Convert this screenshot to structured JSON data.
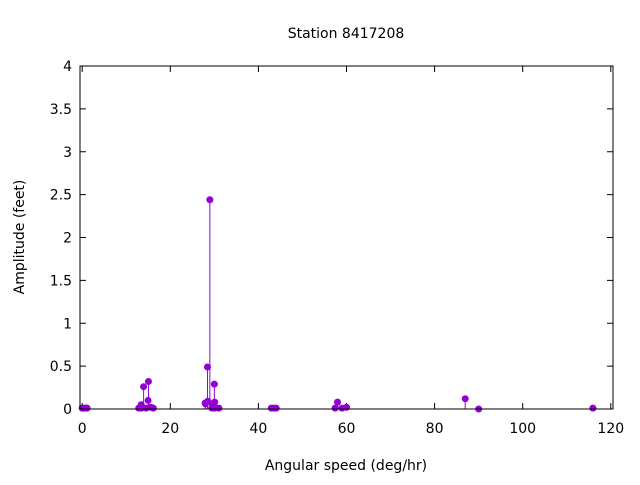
{
  "chart_data": {
    "type": "scatter",
    "style": "impulses-with-points",
    "title": "Station 8417208",
    "xlabel": "Angular speed (deg/hr)",
    "ylabel": "Amplitude (feet)",
    "xlim": [
      -0.5,
      120.5
    ],
    "ylim": [
      0,
      4
    ],
    "xticks": [
      "0",
      "20",
      "40",
      "60",
      "80",
      "100",
      "120"
    ],
    "yticks": [
      "0",
      "0.5",
      "1",
      "1.5",
      "2",
      "2.5",
      "3",
      "3.5",
      "4"
    ],
    "grid": false,
    "color": "#9400d3",
    "points": [
      {
        "x": 0.0,
        "y": 0.01
      },
      {
        "x": 0.04,
        "y": 0.01
      },
      {
        "x": 0.08,
        "y": 0.01
      },
      {
        "x": 0.54,
        "y": 0.01
      },
      {
        "x": 1.02,
        "y": 0.01
      },
      {
        "x": 1.1,
        "y": 0.01
      },
      {
        "x": 12.85,
        "y": 0.01
      },
      {
        "x": 13.4,
        "y": 0.05
      },
      {
        "x": 13.47,
        "y": 0.01
      },
      {
        "x": 13.94,
        "y": 0.26
      },
      {
        "x": 14.5,
        "y": 0.01
      },
      {
        "x": 14.96,
        "y": 0.1
      },
      {
        "x": 15.04,
        "y": 0.32
      },
      {
        "x": 15.59,
        "y": 0.02
      },
      {
        "x": 16.14,
        "y": 0.01
      },
      {
        "x": 27.9,
        "y": 0.07
      },
      {
        "x": 27.97,
        "y": 0.06
      },
      {
        "x": 28.44,
        "y": 0.49
      },
      {
        "x": 28.51,
        "y": 0.09
      },
      {
        "x": 28.98,
        "y": 2.44
      },
      {
        "x": 29.46,
        "y": 0.01
      },
      {
        "x": 29.53,
        "y": 0.06
      },
      {
        "x": 29.96,
        "y": 0.02
      },
      {
        "x": 30.0,
        "y": 0.29
      },
      {
        "x": 30.04,
        "y": 0.01
      },
      {
        "x": 30.08,
        "y": 0.08
      },
      {
        "x": 31.02,
        "y": 0.01
      },
      {
        "x": 42.93,
        "y": 0.01
      },
      {
        "x": 43.48,
        "y": 0.01
      },
      {
        "x": 44.03,
        "y": 0.01
      },
      {
        "x": 57.42,
        "y": 0.01
      },
      {
        "x": 57.97,
        "y": 0.08
      },
      {
        "x": 58.98,
        "y": 0.01
      },
      {
        "x": 60.0,
        "y": 0.02
      },
      {
        "x": 86.95,
        "y": 0.12
      },
      {
        "x": 90.0,
        "y": 0.0
      },
      {
        "x": 115.94,
        "y": 0.01
      }
    ]
  }
}
